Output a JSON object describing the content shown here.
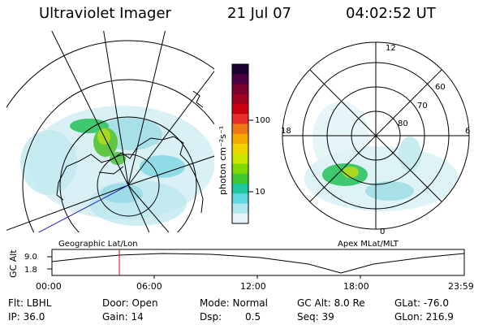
{
  "header": {
    "title": "Ultraviolet Imager",
    "date": "21 Jul 07",
    "time": "04:02:52 UT"
  },
  "colorbar": {
    "unit_label": "photon cm⁻²s⁻¹",
    "ticks": [
      "100",
      "10"
    ],
    "colors": [
      "#1a0033",
      "#4b0040",
      "#7a0030",
      "#a00020",
      "#c80010",
      "#e8302a",
      "#f07818",
      "#f5a800",
      "#f2d400",
      "#c8e600",
      "#80d800",
      "#40c830",
      "#20c8a0",
      "#60d8e0",
      "#b0e8f0",
      "#e8f4f8"
    ]
  },
  "left_map": {
    "label": "Geographic Lat/Lon"
  },
  "right_map": {
    "label": "Apex MLat/MLT",
    "mlt_labels": [
      "12",
      "18",
      "6",
      "0"
    ],
    "lat_labels": [
      "60",
      "70",
      "80"
    ]
  },
  "timeline": {
    "axis_title": "GC Alt",
    "y_ticks": [
      "9.0",
      "1.8"
    ],
    "x_ticks": [
      "00:00",
      "06:00",
      "12:00",
      "18:00",
      "23:59"
    ],
    "marker_color": "#e00000"
  },
  "info": {
    "flt": "Flt: LBHL",
    "ip": "IP: 36.0",
    "door": "Door: Open",
    "gain": "Gain: 14",
    "mode": "Mode: Normal",
    "dsp_label": "Dsp:",
    "dsp_value": "0.5",
    "gcalt": "GC Alt: 8.0 Re",
    "seq": "Seq: 39",
    "glat": "GLat: -76.0",
    "glon": "GLon: 216.9"
  }
}
